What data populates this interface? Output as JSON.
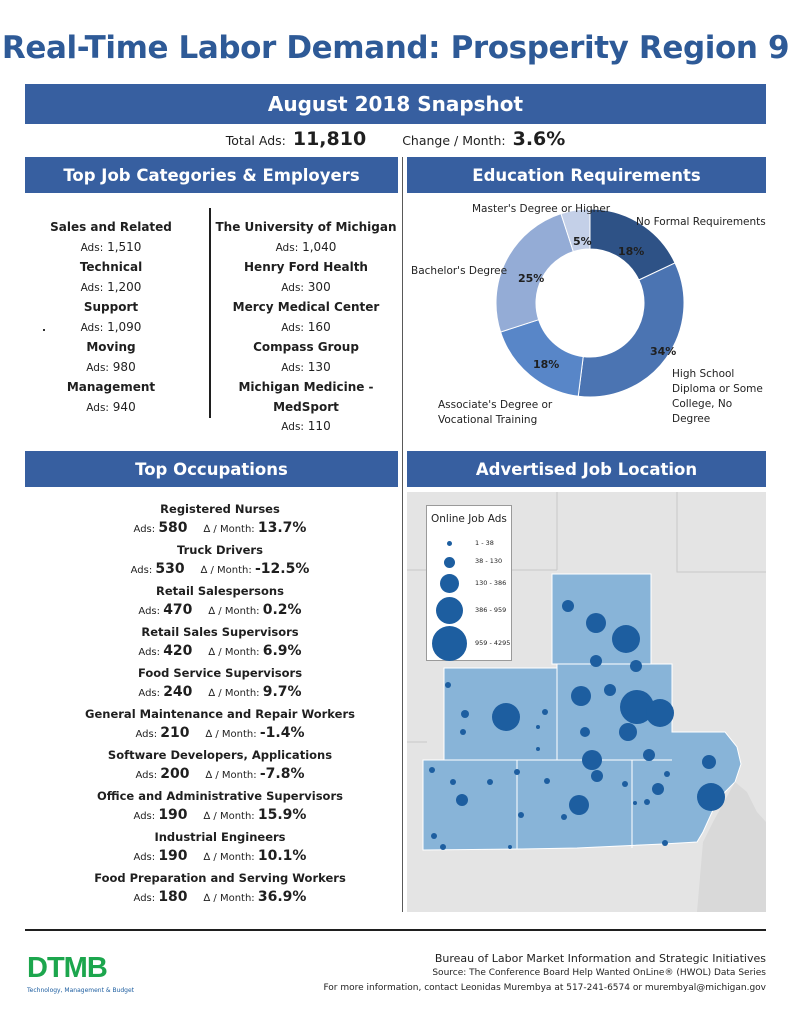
{
  "title": "Real-Time Labor Demand: Prosperity Region 9",
  "snapshot": "August 2018 Snapshot",
  "totals": {
    "total_label": "Total Ads:",
    "total_value": "11,810",
    "change_label": "Change / Month:",
    "change_value": "3.6%"
  },
  "sections": {
    "top_jobs": "Top Job Categories & Employers",
    "education": "Education Requirements",
    "occupations": "Top Occupations",
    "location": "Advertised Job Location"
  },
  "ads_label": "Ads:",
  "delta_label": "∆ / Month:",
  "categories": [
    {
      "name": "Sales and Related",
      "ads": "1,510"
    },
    {
      "name": "Technical",
      "ads": "1,200"
    },
    {
      "name": "Support",
      "ads": "1,090"
    },
    {
      "name": "Moving",
      "ads": "980"
    },
    {
      "name": "Management",
      "ads": "940"
    }
  ],
  "employers": [
    {
      "name": "The University of Michigan",
      "ads": "1,040"
    },
    {
      "name": "Henry Ford Health",
      "ads": "300"
    },
    {
      "name": "Mercy Medical Center",
      "ads": "160"
    },
    {
      "name": "Compass Group",
      "ads": "130"
    },
    {
      "name": "Michigan Medicine - MedSport",
      "ads": "110"
    }
  ],
  "chart_data": {
    "type": "pie",
    "donut": true,
    "title": "",
    "slices": [
      {
        "label": "No Formal Requirements",
        "value": 18,
        "display": "18%",
        "color": "#2e5286"
      },
      {
        "label": "High School Diploma or Some College, No Degree",
        "value": 34,
        "display": "34%",
        "color": "#4b74b2"
      },
      {
        "label": "Associate's Degree or Vocational Training",
        "value": 18,
        "display": "18%",
        "color": "#5886c8"
      },
      {
        "label": "Bachelor's Degree",
        "value": 25,
        "display": "25%",
        "color": "#94acd6"
      },
      {
        "label": "Master's Degree or Higher",
        "value": 5,
        "display": "5%",
        "color": "#c4d0e8"
      }
    ]
  },
  "occupations": [
    {
      "name": "Registered Nurses",
      "ads": "580",
      "change": "13.7%"
    },
    {
      "name": "Truck Drivers",
      "ads": "530",
      "change": "-12.5%"
    },
    {
      "name": "Retail Salespersons",
      "ads": "470",
      "change": "0.2%"
    },
    {
      "name": "Retail Sales Supervisors",
      "ads": "420",
      "change": "6.9%"
    },
    {
      "name": "Food Service Supervisors",
      "ads": "240",
      "change": "9.7%"
    },
    {
      "name": "General Maintenance and Repair Workers",
      "ads": "210",
      "change": "-1.4%"
    },
    {
      "name": "Software Developers, Applications",
      "ads": "200",
      "change": "-7.8%"
    },
    {
      "name": "Office and Administrative Supervisors",
      "ads": "190",
      "change": "15.9%"
    },
    {
      "name": "Industrial Engineers",
      "ads": "190",
      "change": "10.1%"
    },
    {
      "name": "Food Preparation and Serving Workers",
      "ads": "180",
      "change": "36.9%"
    }
  ],
  "map_legend": {
    "title": "Online Job Ads",
    "bins": [
      "1 - 38",
      "38 - 130",
      "130 - 386",
      "386 - 959",
      "959 - 4295"
    ],
    "bubble_color": "#1d5ea0",
    "region_color": "#88b4d8"
  },
  "logo": {
    "letters": "DTMB",
    "tagline": "Technology, Management & Budget"
  },
  "footer": {
    "line1": "Bureau of Labor Market Information and Strategic Initiatives",
    "line2": "Source: The Conference Board Help Wanted OnLine® (HWOL) Data Series",
    "line3": "For more information, contact Leonidas Murembya at 517-241-6574 or murembyal@michigan.gov"
  }
}
